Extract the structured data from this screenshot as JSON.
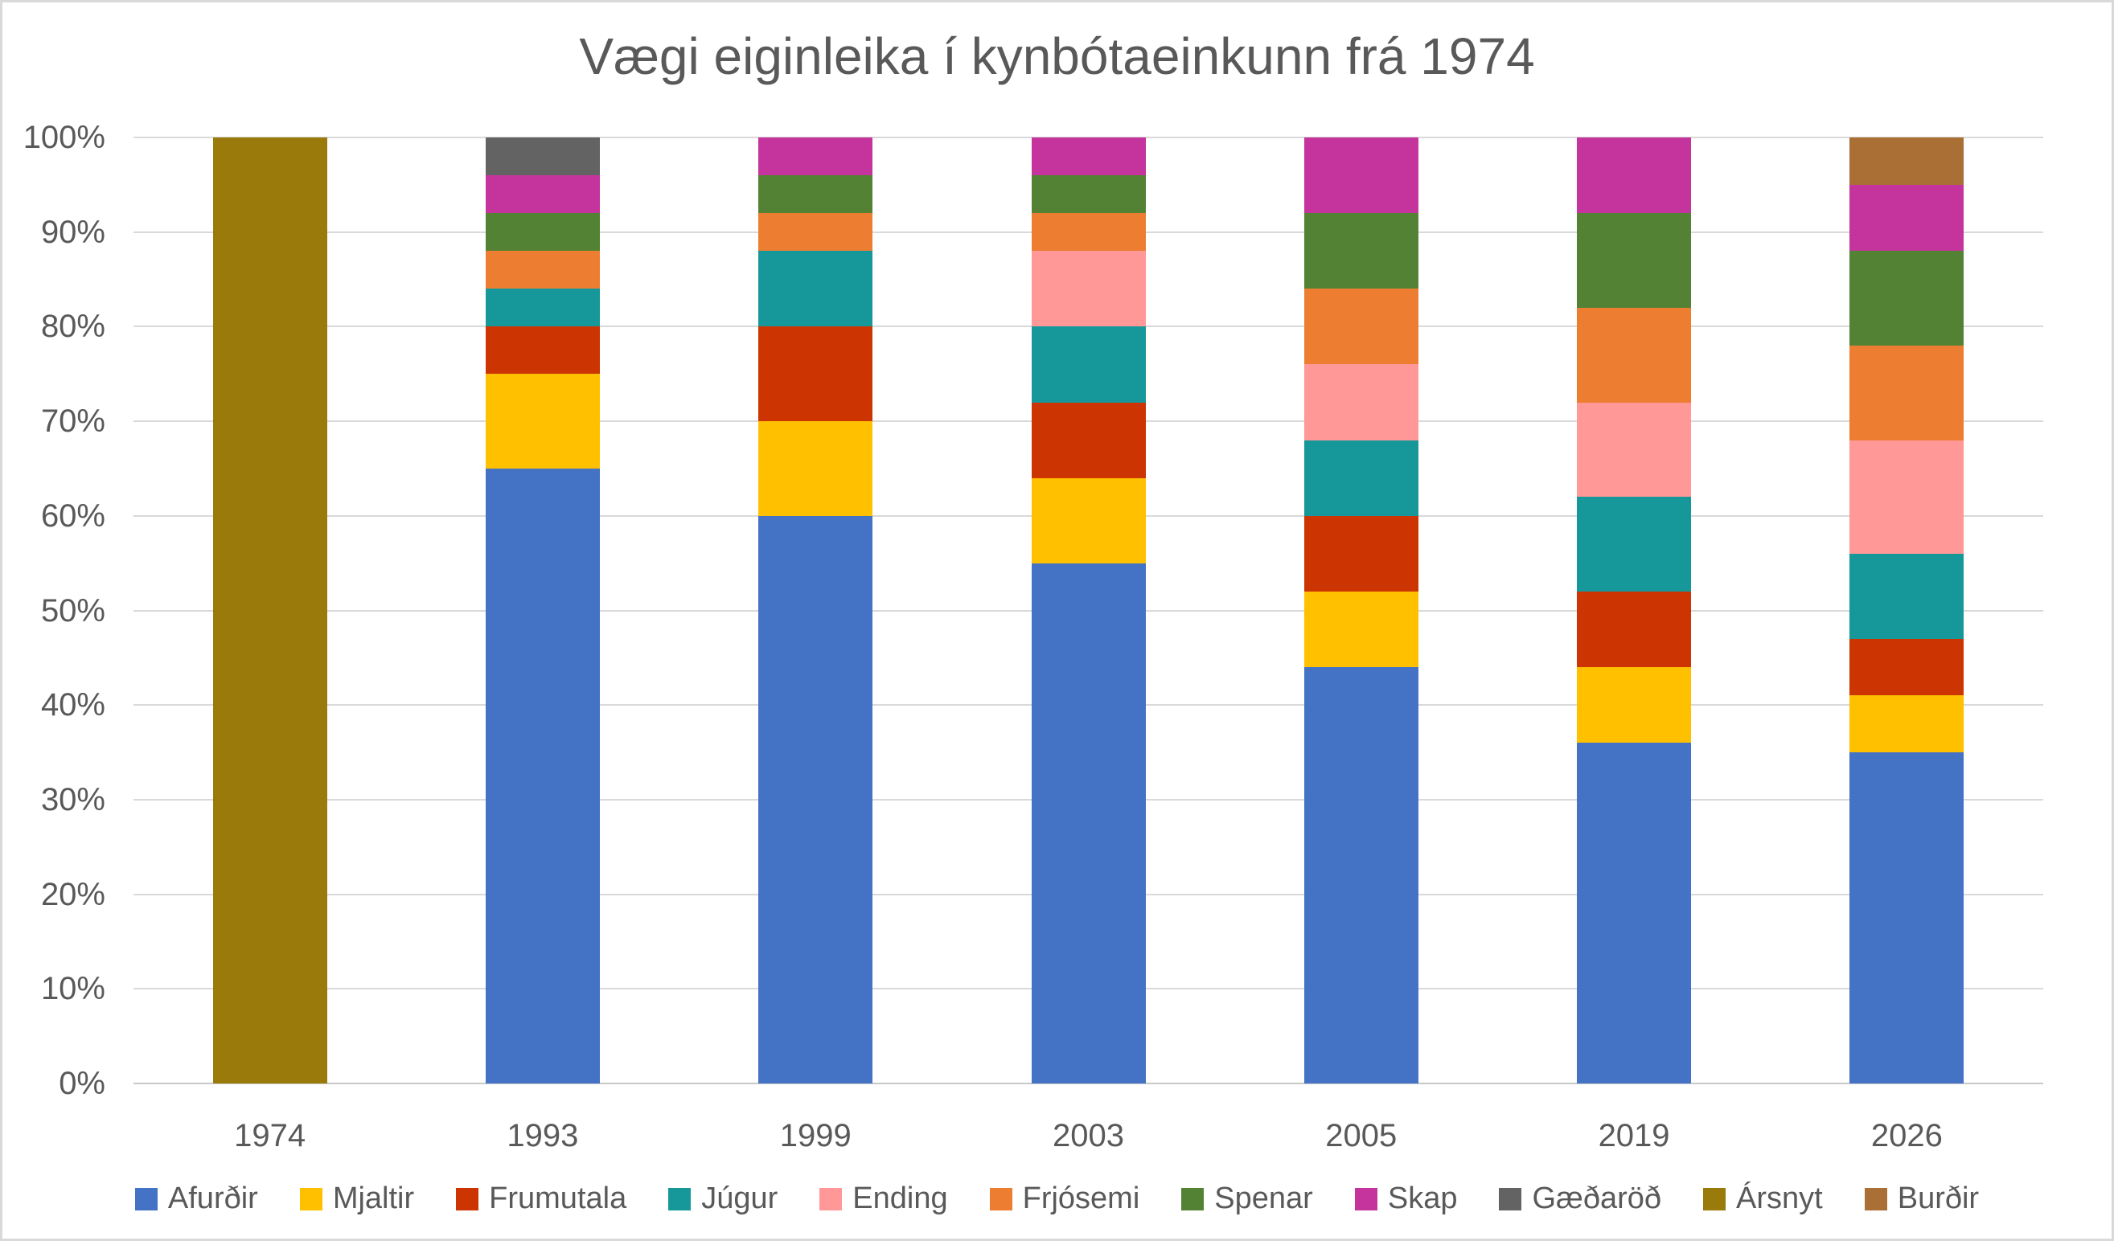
{
  "title": "Vægi eiginleika í kynbótaeinkunn frá 1974",
  "chart_data": {
    "type": "bar",
    "stacked": true,
    "title": "Vægi eiginleika í kynbótaeinkunn frá 1974",
    "categories": [
      "1974",
      "1993",
      "1999",
      "2003",
      "2005",
      "2019",
      "2026"
    ],
    "series": [
      {
        "name": "Afurðir",
        "color": "#4472C4",
        "values": [
          0,
          65,
          60,
          55,
          44,
          36,
          35
        ]
      },
      {
        "name": "Mjaltir",
        "color": "#FFC000",
        "values": [
          0,
          10,
          10,
          9,
          8,
          8,
          6
        ]
      },
      {
        "name": "Frumutala",
        "color": "#CC3502",
        "values": [
          0,
          5,
          10,
          8,
          8,
          8,
          6
        ]
      },
      {
        "name": "Júgur",
        "color": "#16989B",
        "values": [
          0,
          4,
          8,
          8,
          8,
          10,
          9
        ]
      },
      {
        "name": "Ending",
        "color": "#FF9896",
        "values": [
          0,
          0,
          0,
          8,
          8,
          10,
          12
        ]
      },
      {
        "name": "Frjósemi",
        "color": "#ED7D31",
        "values": [
          0,
          4,
          4,
          4,
          8,
          10,
          10
        ]
      },
      {
        "name": "Spenar",
        "color": "#548235",
        "values": [
          0,
          4,
          4,
          4,
          8,
          10,
          10
        ]
      },
      {
        "name": "Skap",
        "color": "#C5349D",
        "values": [
          0,
          4,
          4,
          4,
          8,
          8,
          7
        ]
      },
      {
        "name": "Gæðaröð",
        "color": "#636363",
        "values": [
          0,
          4,
          0,
          0,
          0,
          0,
          0
        ]
      },
      {
        "name": "Ársnyt",
        "color": "#9A7A0A",
        "values": [
          100,
          0,
          0,
          0,
          0,
          0,
          0
        ]
      },
      {
        "name": "Burðir",
        "color": "#A96F35",
        "values": [
          0,
          0,
          0,
          0,
          0,
          0,
          5
        ]
      }
    ],
    "y_axis": {
      "min": 0,
      "max": 100,
      "step": 10,
      "tick_labels": [
        "0%",
        "10%",
        "20%",
        "30%",
        "40%",
        "50%",
        "60%",
        "70%",
        "80%",
        "90%",
        "100%"
      ]
    },
    "x_axis": {
      "tick_labels": [
        "1974",
        "1993",
        "1999",
        "2003",
        "2005",
        "2019",
        "2026"
      ]
    },
    "grid": true,
    "legend_position": "bottom",
    "legend": [
      "Afurðir",
      "Mjaltir",
      "Frumutala",
      "Júgur",
      "Ending",
      "Frjósemi",
      "Spenar",
      "Skap",
      "Gæðaröð",
      "Ársnyt",
      "Burðir"
    ]
  },
  "style": {
    "grid_color": "#D9D9D9",
    "axis_line_color": "#C8C8C8",
    "text_color": "#595959",
    "background": "#FFFFFF"
  }
}
